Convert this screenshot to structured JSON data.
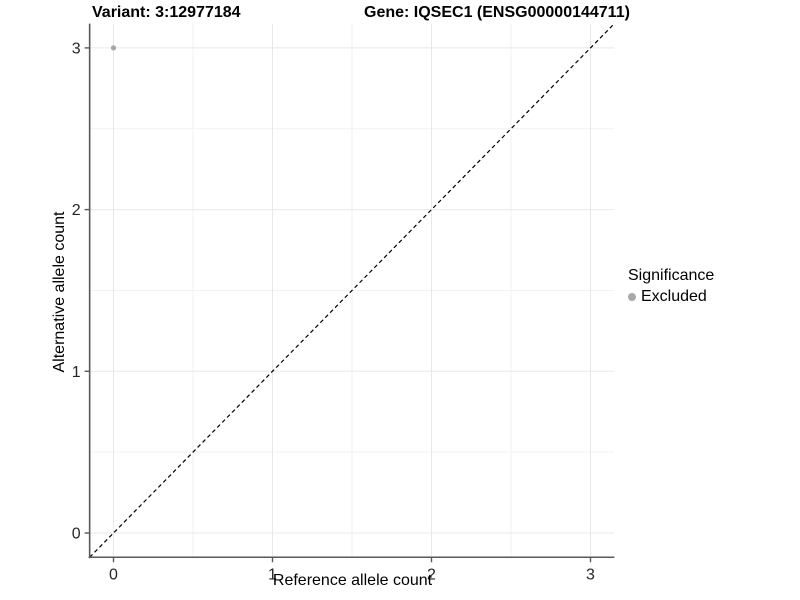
{
  "chart_data": {
    "type": "scatter",
    "title_left": "Variant: 3:12977184",
    "title_right": "Gene: IQSEC1 (ENSG00000144711)",
    "xlabel": "Reference allele count",
    "ylabel": "Alternative allele count",
    "xlim": [
      -0.15,
      3.15
    ],
    "ylim": [
      -0.15,
      3.15
    ],
    "xticks": [
      0,
      1,
      2,
      3
    ],
    "yticks": [
      0,
      1,
      2,
      3
    ],
    "minor_xticks": [
      0.5,
      1.5,
      2.5
    ],
    "minor_yticks": [
      0.5,
      1.5,
      2.5
    ],
    "grid": "major+minor",
    "points": [
      {
        "x": 0,
        "y": 3,
        "series": "Excluded"
      }
    ],
    "reference_line": {
      "slope": 1,
      "intercept": 0,
      "style": "dashed",
      "color": "#000000"
    },
    "legend": {
      "position": "right",
      "title": "Significance",
      "items": [
        {
          "label": "Excluded",
          "color": "#a8a8a8"
        }
      ]
    },
    "colors": {
      "background": "#ffffff",
      "point_excluded": "#a8a8a8",
      "axis_line": "#595959",
      "tick_text": "#262626",
      "grid_major": "#e8e8e8",
      "grid_minor": "#f2f2f2"
    }
  }
}
